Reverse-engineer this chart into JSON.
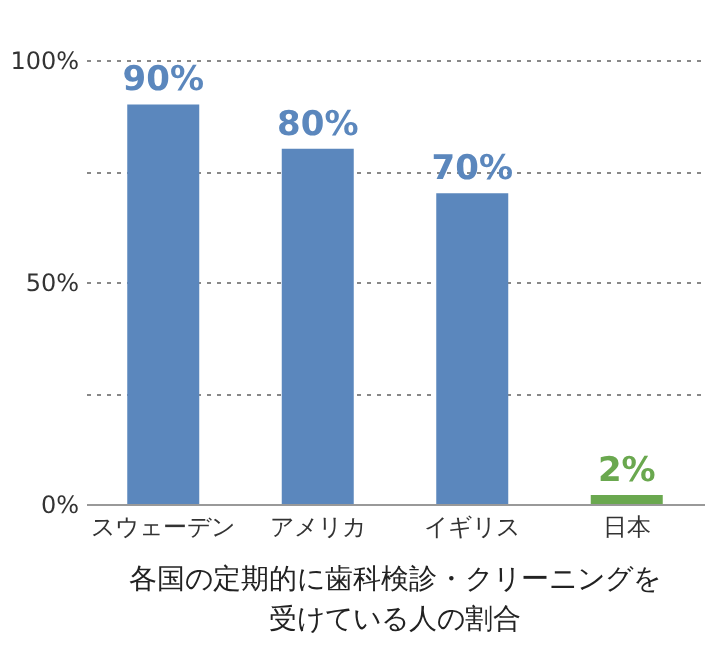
{
  "chart_data": {
    "type": "bar",
    "title": "各国の定期的に歯科検診・クリーニングを受けている人の割合",
    "categories": [
      "スウェーデン",
      "アメリカ",
      "イギリス",
      "日本"
    ],
    "values": [
      90,
      80,
      70,
      2
    ],
    "colors": [
      "#5b87bd",
      "#5b87bd",
      "#5b87bd",
      "#6aa84f"
    ],
    "value_labels": [
      "90%",
      "80%",
      "70%",
      "2%"
    ],
    "ylim": [
      0,
      100
    ],
    "yticks": [
      {
        "value": 0,
        "label": "0%"
      },
      {
        "value": 25,
        "label": null
      },
      {
        "value": 50,
        "label": "50%"
      },
      {
        "value": 75,
        "label": null
      },
      {
        "value": 100,
        "label": "100%"
      }
    ],
    "grid": "y"
  }
}
